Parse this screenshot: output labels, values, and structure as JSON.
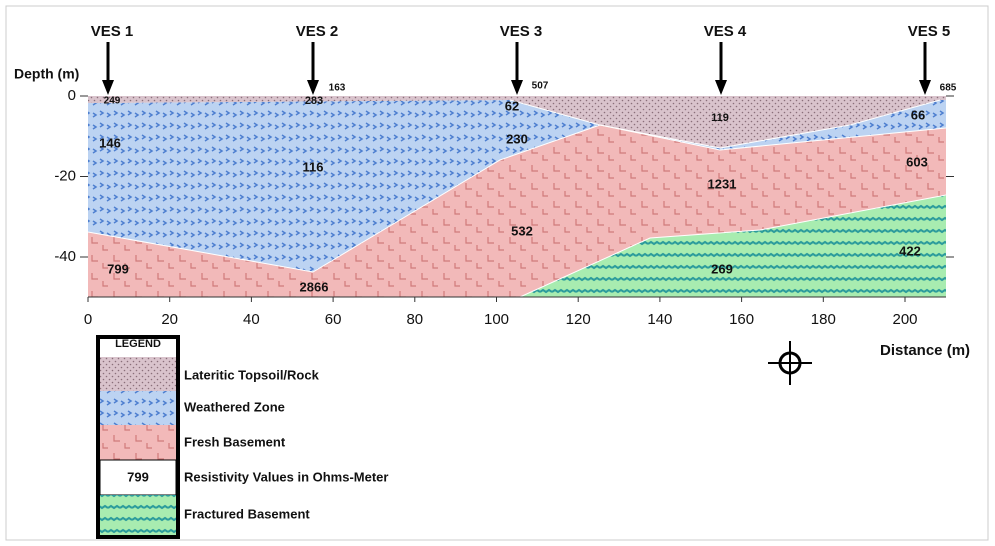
{
  "ves": [
    "VES 1",
    "VES 2",
    "VES 3",
    "VES 4",
    "VES 5"
  ],
  "axis": {
    "y_label": "Depth (m)",
    "x_label": "Distance (m)",
    "xticks": [
      0,
      20,
      40,
      60,
      80,
      100,
      120,
      140,
      160,
      180,
      200
    ],
    "yticks": [
      0,
      -20,
      -40
    ]
  },
  "resistivity_labels": [
    "249",
    "163",
    "283",
    "507",
    "62",
    "685",
    "66",
    "119",
    "146",
    "116",
    "230",
    "603",
    "1231",
    "532",
    "799",
    "2866",
    "269",
    "422"
  ],
  "legend": {
    "title": "LEGEND",
    "items": [
      "Lateritic Topsoil/Rock",
      "Weathered Zone",
      "Fresh Basement",
      "Resistivity Values in Ohms-Meter",
      "Fractured Basement"
    ],
    "sample_value": "799"
  }
}
